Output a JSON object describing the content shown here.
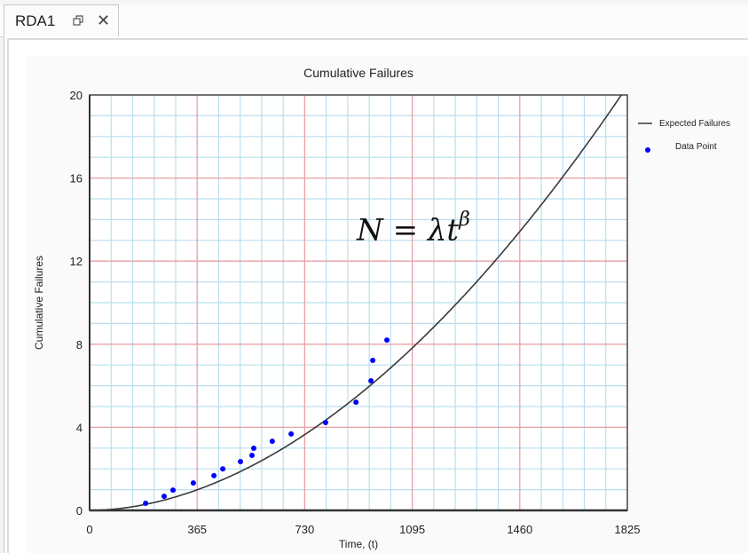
{
  "window": {
    "tab_title": "RDA1",
    "restore_icon": "restore-window-icon",
    "close_icon": "close-icon",
    "close_glyph": "✕"
  },
  "chart": {
    "annotation": {
      "lhs": "N",
      "eq": "=",
      "rhs_base": "λt",
      "rhs_exp": "β"
    }
  },
  "chart_data": {
    "type": "scatter",
    "title": "Cumulative Failures",
    "xlabel": "Time, (t)",
    "ylabel": "Cumulative Failures",
    "xlim": [
      0,
      1825
    ],
    "ylim": [
      0,
      20
    ],
    "x_ticks": [
      0,
      365,
      730,
      1095,
      1460,
      1825
    ],
    "y_ticks": [
      0,
      4,
      8,
      12,
      16,
      20
    ],
    "x_minor_step": 73,
    "y_minor_step": 1,
    "grid": true,
    "grid_colors": {
      "major": "#e8a0a6",
      "minor": "#b9dfee"
    },
    "legend_position": "right",
    "annotation_text": "N = λt^β",
    "series": [
      {
        "name": "Expected Failures",
        "kind": "line",
        "color": "#3a3a3a",
        "model": {
          "form": "N = lambda * t^beta",
          "beta": 1.88,
          "lambda": 1.51e-05
        }
      },
      {
        "name": "Data Point",
        "kind": "scatter",
        "color": "#0000ff",
        "x": [
          190,
          253,
          283,
          352,
          422,
          452,
          512,
          551,
          557,
          620,
          684,
          801,
          904,
          955,
          961,
          1009
        ],
        "y": [
          0.34,
          0.68,
          0.98,
          1.32,
          1.67,
          2.0,
          2.35,
          2.65,
          2.99,
          3.33,
          3.68,
          4.23,
          5.21,
          6.24,
          7.22,
          8.2
        ]
      }
    ]
  }
}
